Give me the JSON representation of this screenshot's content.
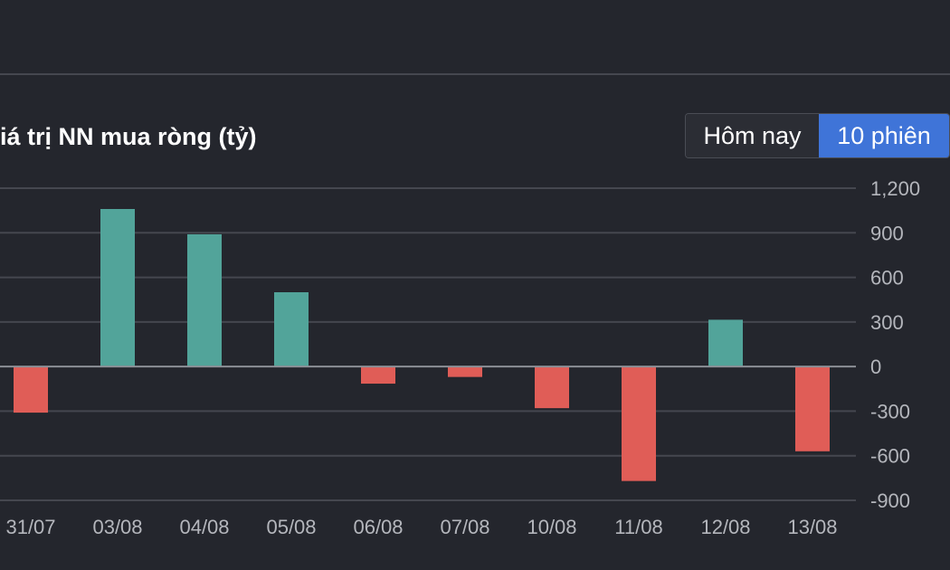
{
  "header": {
    "title": "iá trị NN mua ròng (tỷ)"
  },
  "toggle": {
    "today_label": "Hôm nay",
    "ten_sessions_label": "10 phiên",
    "selected": "10 phiên"
  },
  "colors": {
    "positive": "#52a49a",
    "negative": "#e05d57",
    "grid": "#45474f",
    "zero_line": "#8c8f96",
    "active_toggle": "#3f74d8"
  },
  "chart_data": {
    "type": "bar",
    "title": "iá trị NN mua ròng (tỷ)",
    "categories": [
      "31/07",
      "03/08",
      "04/08",
      "05/08",
      "06/08",
      "07/08",
      "10/08",
      "11/08",
      "12/08",
      "13/08"
    ],
    "values": [
      -310,
      1060,
      890,
      500,
      -115,
      -70,
      -280,
      -770,
      315,
      -570
    ],
    "y_ticks": [
      "1,200",
      "900",
      "600",
      "300",
      "0",
      "-300",
      "-600",
      "-900"
    ],
    "ylim": [
      -900,
      1200
    ],
    "grid": true,
    "y_axis_position": "right"
  }
}
